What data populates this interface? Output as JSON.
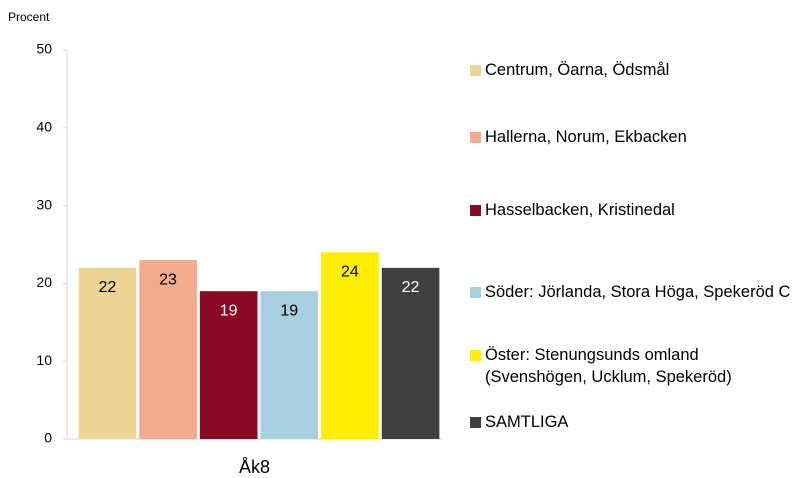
{
  "chart_data": {
    "type": "bar",
    "y_label": "Procent",
    "categories": [
      "Åk8"
    ],
    "series": [
      {
        "name": "Centrum, Öarna, Ödsmål",
        "color": "#ebd594",
        "values": [
          22
        ]
      },
      {
        "name": "Hallerna, Norum, Ekbacken",
        "color": "#f4aa8c",
        "values": [
          23
        ]
      },
      {
        "name": "Hasselbacken, Kristinedal",
        "color": "#8b0a23",
        "values": [
          19
        ]
      },
      {
        "name": "Söder: Jörlanda, Stora Höga, Spekeröd C",
        "color": "#a8cfe0",
        "values": [
          19
        ]
      },
      {
        "name": "Öster: Stenungsunds omland (Svenshögen, Ucklum, Spekeröd)",
        "color": "#ffee00",
        "values": [
          24
        ]
      },
      {
        "name": "SAMTLIGA",
        "color": "#404040",
        "values": [
          22
        ]
      }
    ],
    "ylim": [
      0,
      50
    ],
    "yticks": [
      0,
      10,
      20,
      30,
      40,
      50
    ],
    "grid": false,
    "legend": "right"
  }
}
